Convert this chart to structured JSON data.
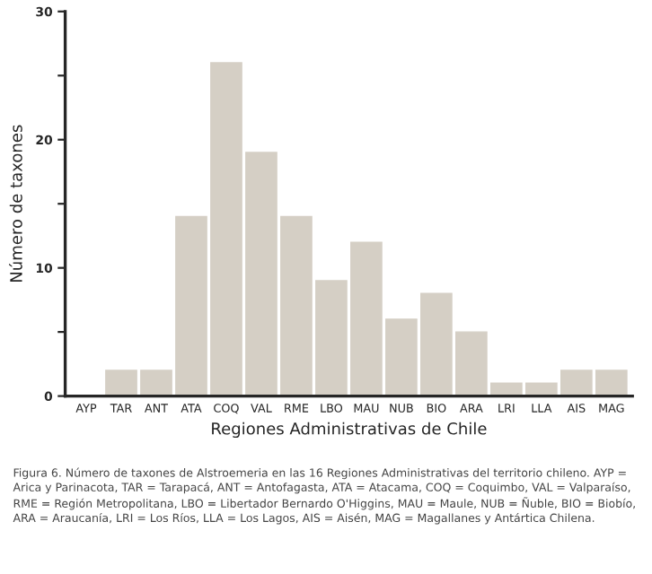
{
  "chart_data": {
    "type": "bar",
    "categories": [
      "AYP",
      "TAR",
      "ANT",
      "ATA",
      "COQ",
      "VAL",
      "RME",
      "LBO",
      "MAU",
      "NUB",
      "BIO",
      "ARA",
      "LRI",
      "LLA",
      "AIS",
      "MAG"
    ],
    "values": [
      0,
      2,
      2,
      14,
      26,
      19,
      14,
      9,
      12,
      6,
      8,
      5,
      1,
      1,
      2,
      2
    ],
    "color": "#d5cfc5",
    "xlabel": "Regiones Administrativas de Chile",
    "ylabel": "Número de taxones",
    "ylim": [
      0,
      30
    ],
    "yticks": [
      0,
      {
        "value": 5,
        "label": null
      },
      10,
      {
        "value": 15,
        "label": null
      },
      20,
      {
        "value": 25,
        "label": null
      },
      30
    ],
    "grid": false,
    "annotations": [
      "Figura 6. Número de taxones de Alstroemeria en las 16 Regiones Administrativas del territorio chileno. AYP = Arica y Parinacota, TAR = Tarapacá, ANT = Antofagasta, ATA = Atacama, COQ = Coquimbo, VAL = Valparaíso, RME = Región Metropolitana, LBO = Libertador Bernardo O'Higgins, MAU = Maule, NUB = Ñuble, BIO = Biobío, ARA = Araucanía, LRI = Los Ríos, LLA = Los Lagos, AIS = Aisén, MAG = Magallanes y Antártica Chilena."
    ]
  }
}
